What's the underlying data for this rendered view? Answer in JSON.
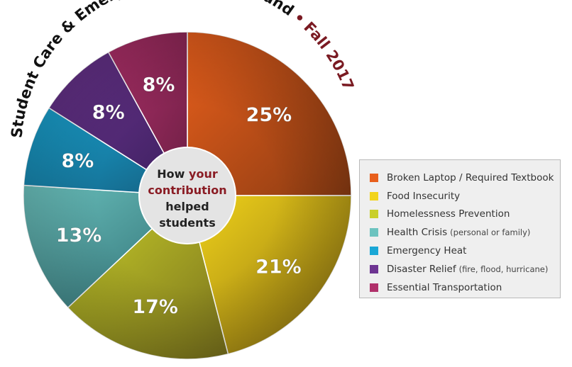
{
  "chart_data": {
    "type": "pie",
    "title": "Student Care & Emergency Response Fund",
    "title_separator": "•",
    "subtitle": "Fall 2017",
    "center_label": {
      "line1_pre": "How ",
      "line1_em": "your",
      "line2": "contribution",
      "line3": "helped",
      "line4": "students"
    },
    "slices": [
      {
        "label": "Broken Laptop / Required Textbook",
        "note": "",
        "value": 25,
        "value_label": "25%",
        "color": "#e85f1c"
      },
      {
        "label": "Food Insecurity",
        "note": "",
        "value": 21,
        "value_label": "21%",
        "color": "#f2d41a"
      },
      {
        "label": "Homelessness Prevention",
        "note": "",
        "value": 17,
        "value_label": "17%",
        "color": "#c9cf2a"
      },
      {
        "label": "Health Crisis",
        "note": "(personal or family)",
        "value": 13,
        "value_label": "13%",
        "color": "#6cc3bf"
      },
      {
        "label": "Emergency Heat",
        "note": "",
        "value": 8,
        "value_label": "8%",
        "color": "#1aa7d6"
      },
      {
        "label": "Disaster Relief",
        "note": "(fire, flood, hurricane)",
        "value": 8,
        "value_label": "8%",
        "color": "#6e3592"
      },
      {
        "label": "Essential Transportation",
        "note": "",
        "value": 8,
        "value_label": "8%",
        "color": "#b0306a"
      }
    ],
    "legend_position": "right"
  },
  "colors": {
    "title": "#111111",
    "subtitle": "#7a1a22",
    "center_em": "#8a1c24",
    "slice_dark": [
      "#8a3b12",
      "#8a6f12",
      "#78701c",
      "#2e6d72",
      "#145f80",
      "#3a1f5c",
      "#6c1f44"
    ]
  }
}
